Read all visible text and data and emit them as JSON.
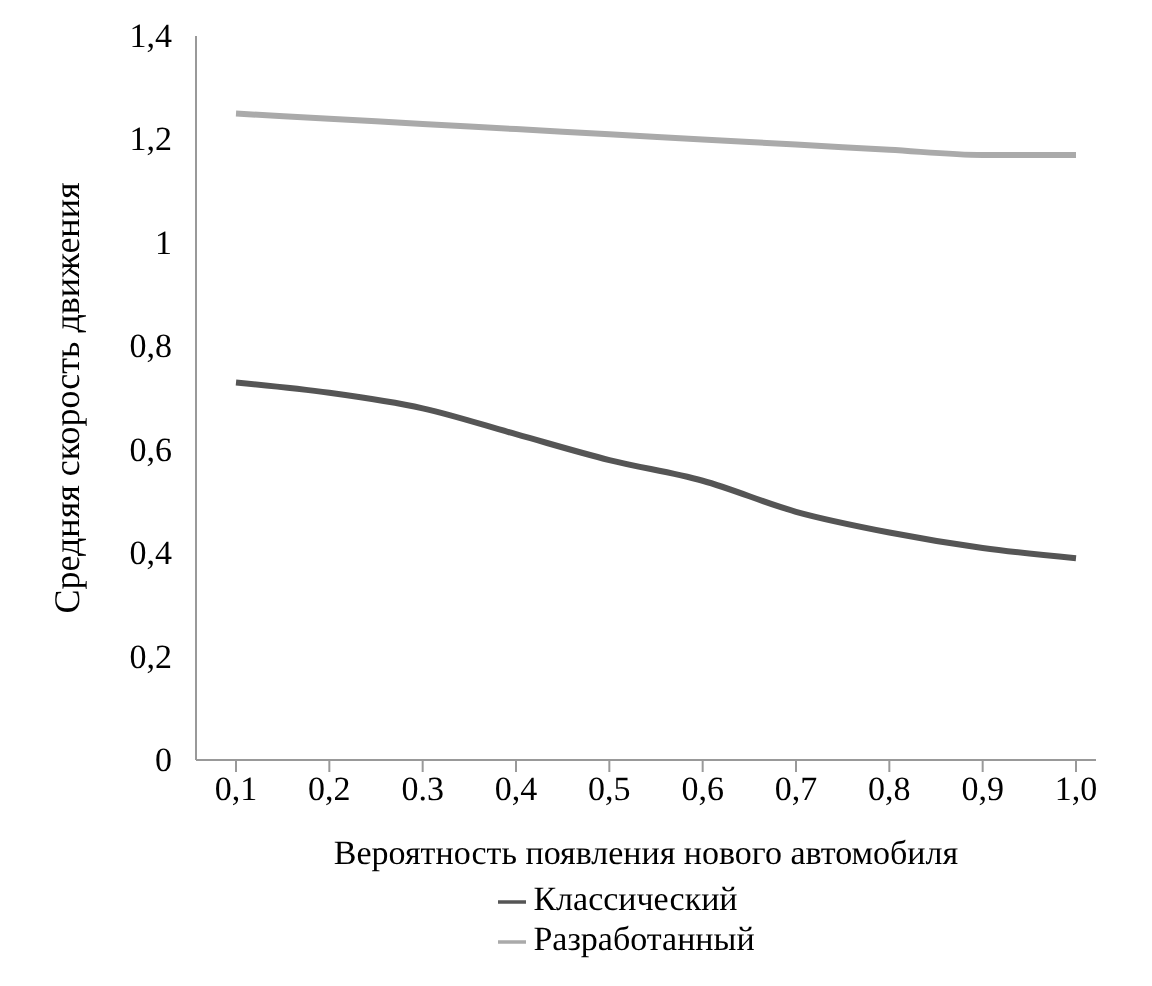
{
  "chart_data": {
    "type": "line",
    "xlabel": "Вероятность появления нового автомобиля",
    "ylabel": "Средняя скорость движения",
    "categories": [
      "0,1",
      "0,2",
      "0.3",
      "0,4",
      "0,5",
      "0,6",
      "0,7",
      "0,8",
      "0,9",
      "1,0"
    ],
    "series": [
      {
        "name": "Классический",
        "color": "#555555",
        "values": [
          0.73,
          0.71,
          0.68,
          0.63,
          0.58,
          0.54,
          0.48,
          0.44,
          0.41,
          0.39
        ]
      },
      {
        "name": "Разработанный",
        "color": "#aaaaaa",
        "values": [
          1.25,
          1.24,
          1.23,
          1.22,
          1.21,
          1.2,
          1.19,
          1.18,
          1.17,
          1.17
        ]
      }
    ],
    "ylim": [
      0,
      1.4
    ],
    "yticks": [
      {
        "value": 0,
        "label": "0"
      },
      {
        "value": 0.2,
        "label": "0,2"
      },
      {
        "value": 0.4,
        "label": "0,4"
      },
      {
        "value": 0.6,
        "label": "0,6"
      },
      {
        "value": 0.8,
        "label": "0,8"
      },
      {
        "value": 1,
        "label": "1"
      },
      {
        "value": 1.2,
        "label": "1,2"
      },
      {
        "value": 1.4,
        "label": "1,4"
      }
    ],
    "grid": false,
    "legend": "bottom",
    "marker": "none",
    "line_style": "solid"
  }
}
